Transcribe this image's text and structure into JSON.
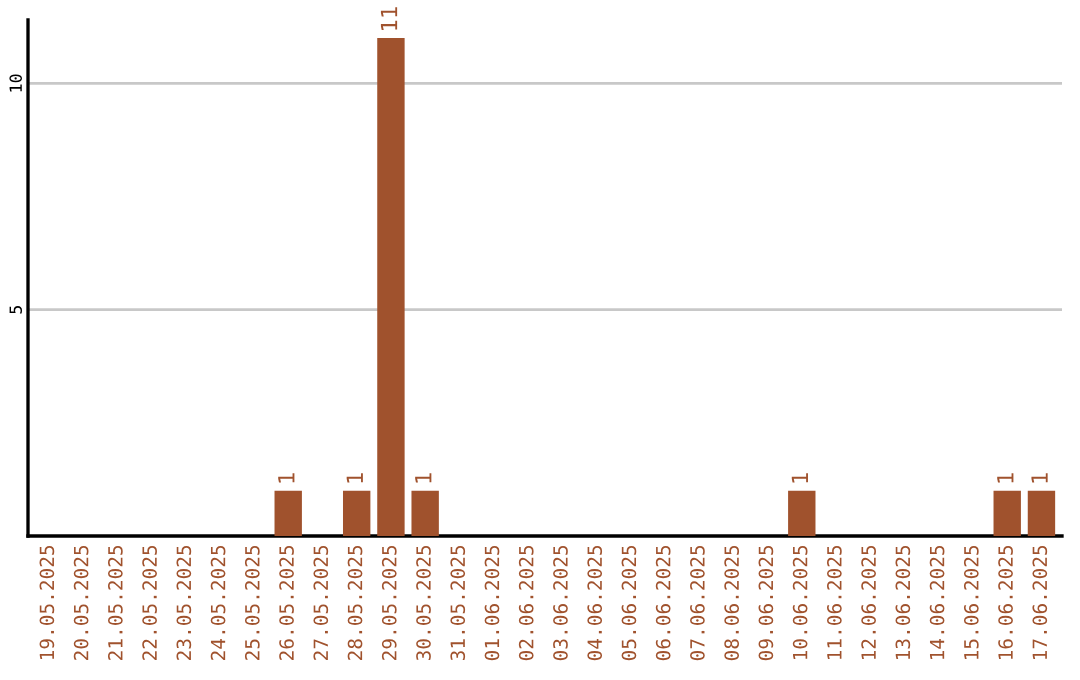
{
  "chart_data": {
    "type": "bar",
    "categories": [
      "19.05.2025",
      "20.05.2025",
      "21.05.2025",
      "22.05.2025",
      "23.05.2025",
      "24.05.2025",
      "25.05.2025",
      "26.05.2025",
      "27.05.2025",
      "28.05.2025",
      "29.05.2025",
      "30.05.2025",
      "31.05.2025",
      "01.06.2025",
      "02.06.2025",
      "03.06.2025",
      "04.06.2025",
      "05.06.2025",
      "06.06.2025",
      "07.06.2025",
      "08.06.2025",
      "09.06.2025",
      "10.06.2025",
      "11.06.2025",
      "12.06.2025",
      "13.06.2025",
      "14.06.2025",
      "15.06.2025",
      "16.06.2025",
      "17.06.2025"
    ],
    "values": [
      0,
      0,
      0,
      0,
      0,
      0,
      0,
      1,
      0,
      1,
      11,
      1,
      0,
      0,
      0,
      0,
      0,
      0,
      0,
      0,
      0,
      0,
      1,
      0,
      0,
      0,
      0,
      0,
      1,
      1
    ],
    "value_labels": [
      null,
      null,
      null,
      null,
      null,
      null,
      null,
      "1",
      null,
      "1",
      "11",
      "1",
      null,
      null,
      null,
      null,
      null,
      null,
      null,
      null,
      null,
      null,
      "1",
      null,
      null,
      null,
      null,
      null,
      "1",
      "1"
    ],
    "color": "#a0522d",
    "ylim": [
      0,
      11.4
    ],
    "yticks": [
      5,
      10
    ],
    "grid": "y"
  }
}
